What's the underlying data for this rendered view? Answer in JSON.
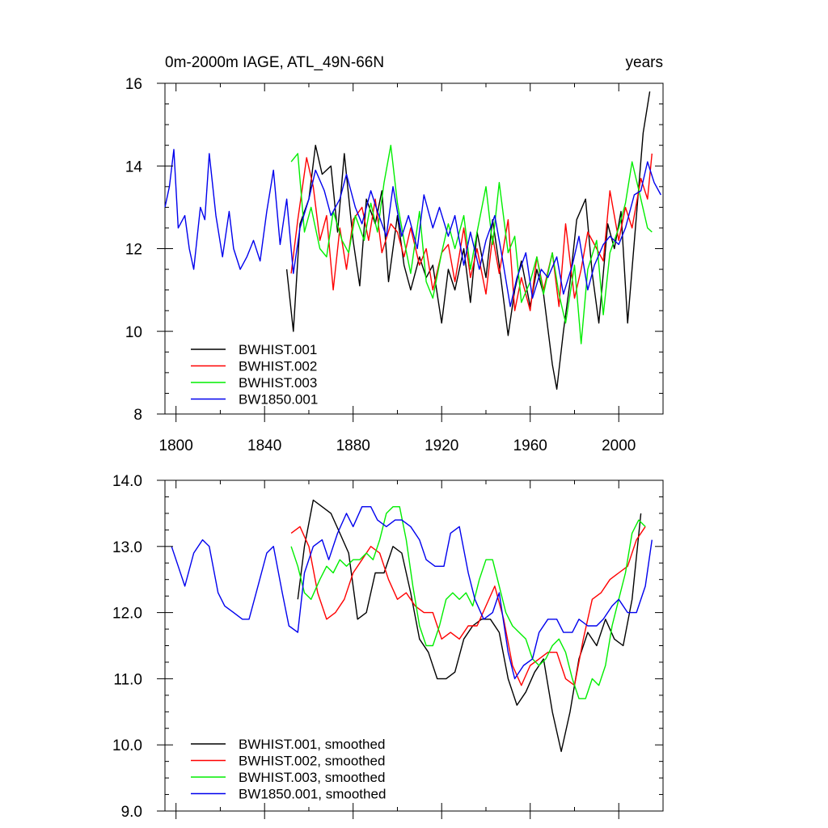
{
  "chart_data": [
    {
      "type": "line",
      "title": "0m-2000m IAGE, ATL_49N-66N",
      "units": "years",
      "xlim": [
        1795,
        2020
      ],
      "ylim": [
        8,
        16
      ],
      "xticks": [
        1800,
        1840,
        1880,
        1920,
        1960,
        2000
      ],
      "yticks": [
        8,
        10,
        12,
        14,
        16
      ],
      "ytick_labels": [
        "8",
        "10",
        "12",
        "14",
        "16"
      ],
      "legend": "bottom-left",
      "series": [
        {
          "name": "BWHIST.001",
          "color": "#000000",
          "x": [
            1850,
            1853,
            1856,
            1860,
            1863,
            1866,
            1870,
            1873,
            1876,
            1880,
            1883,
            1886,
            1890,
            1893,
            1896,
            1900,
            1903,
            1906,
            1910,
            1913,
            1916,
            1920,
            1923,
            1926,
            1930,
            1933,
            1936,
            1940,
            1943,
            1946,
            1950,
            1953,
            1956,
            1960,
            1963,
            1966,
            1970,
            1972,
            1975,
            1978,
            1981,
            1985,
            1988,
            1991,
            1995,
            1998,
            2001,
            2004,
            2008,
            2011,
            2014
          ],
          "y": [
            11.5,
            10.0,
            12.6,
            13.2,
            14.5,
            13.8,
            14.0,
            12.4,
            14.3,
            12.2,
            11.1,
            13.2,
            12.6,
            13.4,
            11.2,
            12.8,
            11.6,
            11.0,
            11.8,
            11.3,
            11.6,
            10.2,
            11.5,
            11.0,
            12.0,
            10.7,
            12.4,
            11.3,
            12.7,
            11.6,
            9.9,
            11.0,
            11.7,
            10.6,
            11.5,
            10.9,
            9.2,
            8.6,
            10.0,
            11.2,
            12.7,
            13.2,
            11.4,
            10.2,
            12.6,
            12.0,
            12.9,
            10.2,
            12.8,
            14.8,
            15.8
          ]
        },
        {
          "name": "BWHIST.002",
          "color": "#ff0000",
          "x": [
            1852,
            1855,
            1859,
            1862,
            1865,
            1868,
            1871,
            1874,
            1877,
            1880,
            1884,
            1887,
            1890,
            1893,
            1897,
            1900,
            1903,
            1906,
            1910,
            1913,
            1916,
            1920,
            1923,
            1926,
            1930,
            1933,
            1936,
            1940,
            1943,
            1946,
            1950,
            1953,
            1956,
            1960,
            1963,
            1966,
            1970,
            1973,
            1976,
            1980,
            1983,
            1986,
            1990,
            1993,
            1996,
            2000,
            2003,
            2006,
            2010,
            2013,
            2015
          ],
          "y": [
            11.4,
            12.7,
            14.2,
            13.5,
            12.2,
            12.8,
            11.0,
            12.5,
            11.5,
            12.7,
            13.0,
            12.2,
            13.2,
            11.9,
            12.6,
            12.4,
            11.8,
            12.5,
            11.6,
            12.0,
            11.0,
            11.9,
            12.1,
            11.2,
            12.5,
            11.3,
            12.0,
            10.9,
            12.3,
            11.4,
            12.7,
            10.5,
            11.3,
            10.5,
            11.8,
            11.0,
            11.9,
            10.6,
            12.6,
            10.8,
            11.5,
            12.4,
            12.0,
            11.7,
            13.4,
            12.2,
            13.0,
            12.5,
            13.7,
            13.2,
            14.3
          ]
        },
        {
          "name": "BWHIST.003",
          "color": "#00ee00",
          "x": [
            1852,
            1855,
            1858,
            1861,
            1865,
            1868,
            1871,
            1875,
            1878,
            1881,
            1885,
            1888,
            1891,
            1894,
            1897,
            1900,
            1903,
            1906,
            1910,
            1913,
            1916,
            1920,
            1923,
            1926,
            1930,
            1933,
            1936,
            1940,
            1943,
            1946,
            1950,
            1953,
            1956,
            1960,
            1963,
            1966,
            1970,
            1973,
            1976,
            1980,
            1983,
            1986,
            1990,
            1993,
            1996,
            2000,
            2003,
            2006,
            2010,
            2013,
            2015
          ],
          "y": [
            14.1,
            14.3,
            12.4,
            13.0,
            12.0,
            11.8,
            12.9,
            12.2,
            11.9,
            12.8,
            12.2,
            13.1,
            12.4,
            13.6,
            14.5,
            13.1,
            12.2,
            11.4,
            12.9,
            11.2,
            10.8,
            11.9,
            12.6,
            12.0,
            12.8,
            11.5,
            12.4,
            13.5,
            12.1,
            13.6,
            11.9,
            12.3,
            10.7,
            11.2,
            11.8,
            10.9,
            11.9,
            10.9,
            10.2,
            11.6,
            9.7,
            11.5,
            12.2,
            10.4,
            11.9,
            12.5,
            13.1,
            14.1,
            13.2,
            12.5,
            12.4
          ]
        },
        {
          "name": "BW1850.001",
          "color": "#0000ee",
          "x": [
            1795,
            1797,
            1799,
            1801,
            1804,
            1806,
            1808,
            1811,
            1813,
            1815,
            1818,
            1821,
            1824,
            1826,
            1829,
            1832,
            1835,
            1838,
            1841,
            1844,
            1847,
            1850,
            1853,
            1856,
            1860,
            1863,
            1867,
            1870,
            1874,
            1877,
            1881,
            1884,
            1888,
            1891,
            1895,
            1898,
            1902,
            1905,
            1909,
            1912,
            1916,
            1919,
            1923,
            1926,
            1930,
            1933,
            1937,
            1940,
            1944,
            1947,
            1951,
            1954,
            1958,
            1961,
            1965,
            1968,
            1972,
            1975,
            1979,
            1982,
            1986,
            1989,
            1993,
            1996,
            2000,
            2003,
            2007,
            2010,
            2013,
            2016,
            2019
          ],
          "y": [
            13.0,
            13.5,
            14.4,
            12.5,
            12.8,
            12.0,
            11.5,
            13.0,
            12.7,
            14.3,
            12.8,
            11.8,
            12.9,
            12.0,
            11.5,
            11.8,
            12.2,
            11.7,
            12.9,
            13.9,
            12.1,
            13.2,
            11.4,
            12.5,
            13.2,
            13.9,
            13.4,
            12.8,
            13.2,
            13.8,
            13.0,
            12.6,
            13.4,
            12.9,
            12.3,
            13.5,
            12.3,
            12.8,
            12.0,
            13.3,
            12.5,
            13.0,
            12.3,
            12.8,
            11.6,
            12.4,
            11.5,
            12.2,
            12.8,
            11.9,
            10.6,
            11.3,
            11.9,
            10.8,
            11.5,
            11.3,
            11.8,
            10.9,
            11.6,
            12.3,
            11.0,
            11.6,
            12.1,
            12.3,
            12.1,
            12.5,
            13.3,
            13.4,
            14.1,
            13.6,
            13.3
          ]
        }
      ]
    },
    {
      "type": "line",
      "xlim": [
        1795,
        2020
      ],
      "ylim": [
        9.0,
        14.0
      ],
      "xticks": [
        1800,
        1840,
        1880,
        1920,
        1960,
        2000
      ],
      "yticks": [
        9.0,
        10.0,
        11.0,
        12.0,
        13.0,
        14.0
      ],
      "ytick_labels": [
        "9.0",
        "10.0",
        "11.0",
        "12.0",
        "13.0",
        "14.0"
      ],
      "legend": "bottom-left",
      "series": [
        {
          "name": "BWHIST.001, smoothed",
          "color": "#000000",
          "x": [
            1855,
            1858,
            1862,
            1866,
            1870,
            1874,
            1878,
            1882,
            1886,
            1890,
            1894,
            1898,
            1902,
            1906,
            1910,
            1914,
            1918,
            1922,
            1926,
            1930,
            1934,
            1938,
            1942,
            1946,
            1950,
            1954,
            1958,
            1962,
            1966,
            1970,
            1974,
            1978,
            1982,
            1986,
            1990,
            1994,
            1998,
            2002,
            2006,
            2010
          ],
          "y": [
            12.2,
            13.0,
            13.7,
            13.6,
            13.5,
            13.2,
            12.9,
            11.9,
            12.0,
            12.6,
            12.6,
            13.0,
            12.9,
            12.3,
            11.6,
            11.4,
            11.0,
            11.0,
            11.1,
            11.6,
            11.8,
            11.9,
            11.9,
            11.7,
            11.0,
            10.6,
            10.8,
            11.1,
            11.3,
            10.5,
            9.9,
            10.5,
            11.3,
            11.7,
            11.5,
            11.9,
            11.6,
            11.5,
            12.2,
            13.5
          ]
        },
        {
          "name": "BWHIST.002, smoothed",
          "color": "#ff0000",
          "x": [
            1852,
            1856,
            1860,
            1864,
            1868,
            1872,
            1876,
            1880,
            1884,
            1888,
            1892,
            1896,
            1900,
            1904,
            1908,
            1912,
            1916,
            1920,
            1924,
            1928,
            1932,
            1936,
            1940,
            1944,
            1948,
            1952,
            1956,
            1960,
            1964,
            1968,
            1972,
            1976,
            1980,
            1984,
            1988,
            1992,
            1996,
            2000,
            2004,
            2008,
            2012
          ],
          "y": [
            13.2,
            13.3,
            13.0,
            12.3,
            11.9,
            12.0,
            12.2,
            12.6,
            12.8,
            13.0,
            12.9,
            12.5,
            12.2,
            12.3,
            12.1,
            12.0,
            12.0,
            11.6,
            11.7,
            11.6,
            11.8,
            11.8,
            12.1,
            12.4,
            11.9,
            11.2,
            10.9,
            11.2,
            11.3,
            11.4,
            11.4,
            11.0,
            10.9,
            11.6,
            12.2,
            12.3,
            12.5,
            12.6,
            12.7,
            13.1,
            13.3
          ]
        },
        {
          "name": "BWHIST.003, smoothed",
          "color": "#00ee00",
          "x": [
            1852,
            1855,
            1858,
            1861,
            1865,
            1868,
            1871,
            1874,
            1877,
            1880,
            1883,
            1886,
            1889,
            1892,
            1895,
            1898,
            1901,
            1904,
            1907,
            1910,
            1913,
            1916,
            1919,
            1922,
            1925,
            1928,
            1931,
            1934,
            1937,
            1940,
            1943,
            1946,
            1949,
            1952,
            1955,
            1958,
            1961,
            1964,
            1967,
            1970,
            1973,
            1976,
            1979,
            1982,
            1985,
            1988,
            1991,
            1994,
            1997,
            2000,
            2003,
            2006,
            2009,
            2012
          ],
          "y": [
            13.0,
            12.7,
            12.3,
            12.2,
            12.5,
            12.7,
            12.6,
            12.8,
            12.7,
            12.8,
            12.8,
            12.9,
            12.8,
            13.1,
            13.5,
            13.6,
            13.6,
            13.1,
            12.4,
            11.8,
            11.5,
            11.5,
            11.8,
            12.2,
            12.3,
            12.2,
            12.3,
            12.1,
            12.5,
            12.8,
            12.8,
            12.4,
            12.0,
            11.8,
            11.7,
            11.6,
            11.3,
            11.2,
            11.3,
            11.5,
            11.6,
            11.4,
            11.0,
            10.7,
            10.7,
            11.0,
            10.9,
            11.2,
            11.8,
            12.2,
            12.6,
            13.2,
            13.4,
            13.3
          ]
        },
        {
          "name": "BW1850.001, smoothed",
          "color": "#0000ee",
          "x": [
            1798,
            1801,
            1804,
            1808,
            1812,
            1815,
            1819,
            1822,
            1826,
            1830,
            1833,
            1837,
            1841,
            1844,
            1848,
            1851,
            1855,
            1858,
            1862,
            1866,
            1869,
            1873,
            1877,
            1880,
            1884,
            1888,
            1891,
            1895,
            1899,
            1902,
            1906,
            1910,
            1913,
            1917,
            1921,
            1924,
            1928,
            1932,
            1935,
            1939,
            1943,
            1946,
            1950,
            1953,
            1957,
            1961,
            1964,
            1968,
            1972,
            1975,
            1979,
            1982,
            1986,
            1990,
            1993,
            1997,
            2000,
            2004,
            2008,
            2012,
            2015
          ],
          "y": [
            13.0,
            12.7,
            12.4,
            12.9,
            13.1,
            13.0,
            12.3,
            12.1,
            12.0,
            11.9,
            11.9,
            12.4,
            12.9,
            13.0,
            12.3,
            11.8,
            11.7,
            12.6,
            13.0,
            13.1,
            12.8,
            13.2,
            13.5,
            13.3,
            13.6,
            13.6,
            13.4,
            13.3,
            13.4,
            13.4,
            13.3,
            13.1,
            12.8,
            12.7,
            12.7,
            13.2,
            13.3,
            12.6,
            12.2,
            11.9,
            12.0,
            12.3,
            11.4,
            11.0,
            11.2,
            11.3,
            11.7,
            11.9,
            11.9,
            11.7,
            11.7,
            11.9,
            11.8,
            11.8,
            11.9,
            12.1,
            12.2,
            12.0,
            12.0,
            12.4,
            13.1
          ]
        }
      ]
    }
  ]
}
